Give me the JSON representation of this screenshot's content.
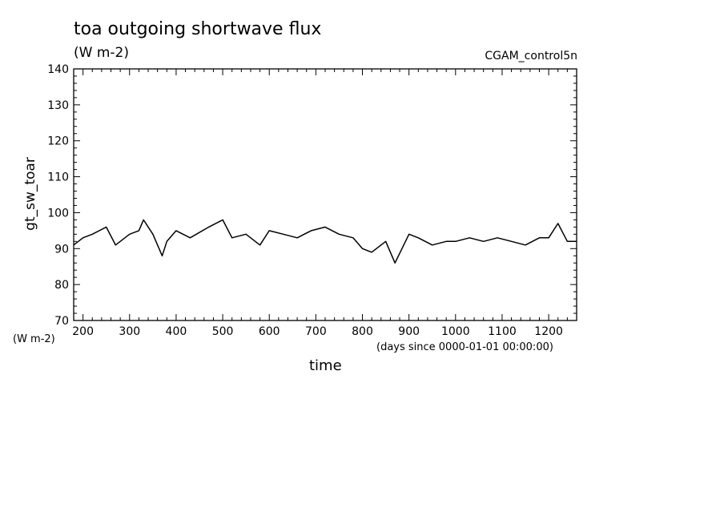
{
  "chart_data": {
    "type": "line",
    "title": "toa outgoing shortwave flux",
    "units": "(W m-2)",
    "dataset": "CGAM_control5n",
    "ylabel": "gt_sw_toar",
    "yunits": "(W m-2)",
    "xlabel": "time",
    "xunits": "(days since 0000-01-01 00:00:00)",
    "xlim": [
      180,
      1260
    ],
    "ylim": [
      70,
      140
    ],
    "xticks": [
      200,
      300,
      400,
      500,
      600,
      700,
      800,
      900,
      1000,
      1100,
      1200
    ],
    "yticks": [
      70,
      80,
      90,
      100,
      110,
      120,
      130,
      140
    ],
    "series": [
      {
        "x": [
          180,
          200,
          220,
          250,
          270,
          300,
          320,
          330,
          350,
          370,
          380,
          400,
          430,
          470,
          500,
          520,
          550,
          580,
          600,
          630,
          660,
          690,
          720,
          750,
          780,
          800,
          820,
          850,
          870,
          900,
          920,
          950,
          980,
          1000,
          1030,
          1060,
          1090,
          1120,
          1150,
          1180,
          1200,
          1220,
          1240,
          1260
        ],
        "y": [
          91,
          93,
          94,
          96,
          91,
          94,
          95,
          98,
          94,
          88,
          92,
          95,
          93,
          96,
          98,
          93,
          94,
          91,
          95,
          94,
          93,
          95,
          96,
          94,
          93,
          90,
          89,
          92,
          86,
          94,
          93,
          91,
          92,
          92,
          93,
          92,
          93,
          92,
          91,
          93,
          93,
          97,
          92,
          92
        ]
      }
    ]
  }
}
